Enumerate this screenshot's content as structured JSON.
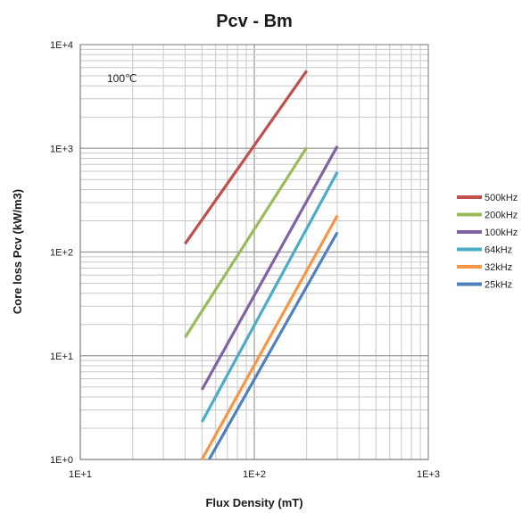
{
  "chart_data": {
    "type": "line",
    "title": "Pcv - Bm",
    "xlabel": "Flux Density (mT)",
    "ylabel": "Core loss Pcv (kW/m3)",
    "x_scale": "log",
    "y_scale": "log",
    "xlim": [
      10,
      1000
    ],
    "ylim": [
      1,
      10000
    ],
    "x_tick_labels": [
      "1E+1",
      "1E+2",
      "1E+3"
    ],
    "y_tick_labels": [
      "1E+0",
      "1E+1",
      "1E+2",
      "1E+3",
      "1E+4"
    ],
    "annotation": "100℃",
    "grid": true,
    "legend_position": "right",
    "series": [
      {
        "name": "500kHz",
        "color": "#c0504d",
        "x": [
          40,
          200
        ],
        "y": [
          120,
          5600
        ]
      },
      {
        "name": "200kHz",
        "color": "#9bbb59",
        "x": [
          40,
          200
        ],
        "y": [
          15,
          1020
        ]
      },
      {
        "name": "100kHz",
        "color": "#8064a2",
        "x": [
          50,
          300
        ],
        "y": [
          4.7,
          1050
        ]
      },
      {
        "name": "64kHz",
        "color": "#4bacc6",
        "x": [
          50,
          300
        ],
        "y": [
          2.3,
          590
        ]
      },
      {
        "name": "32kHz",
        "color": "#f79646",
        "x": [
          50,
          300
        ],
        "y": [
          1.0,
          225
        ]
      },
      {
        "name": "25kHz",
        "color": "#4f81bd",
        "x": [
          55,
          300
        ],
        "y": [
          1.0,
          155
        ]
      }
    ]
  }
}
